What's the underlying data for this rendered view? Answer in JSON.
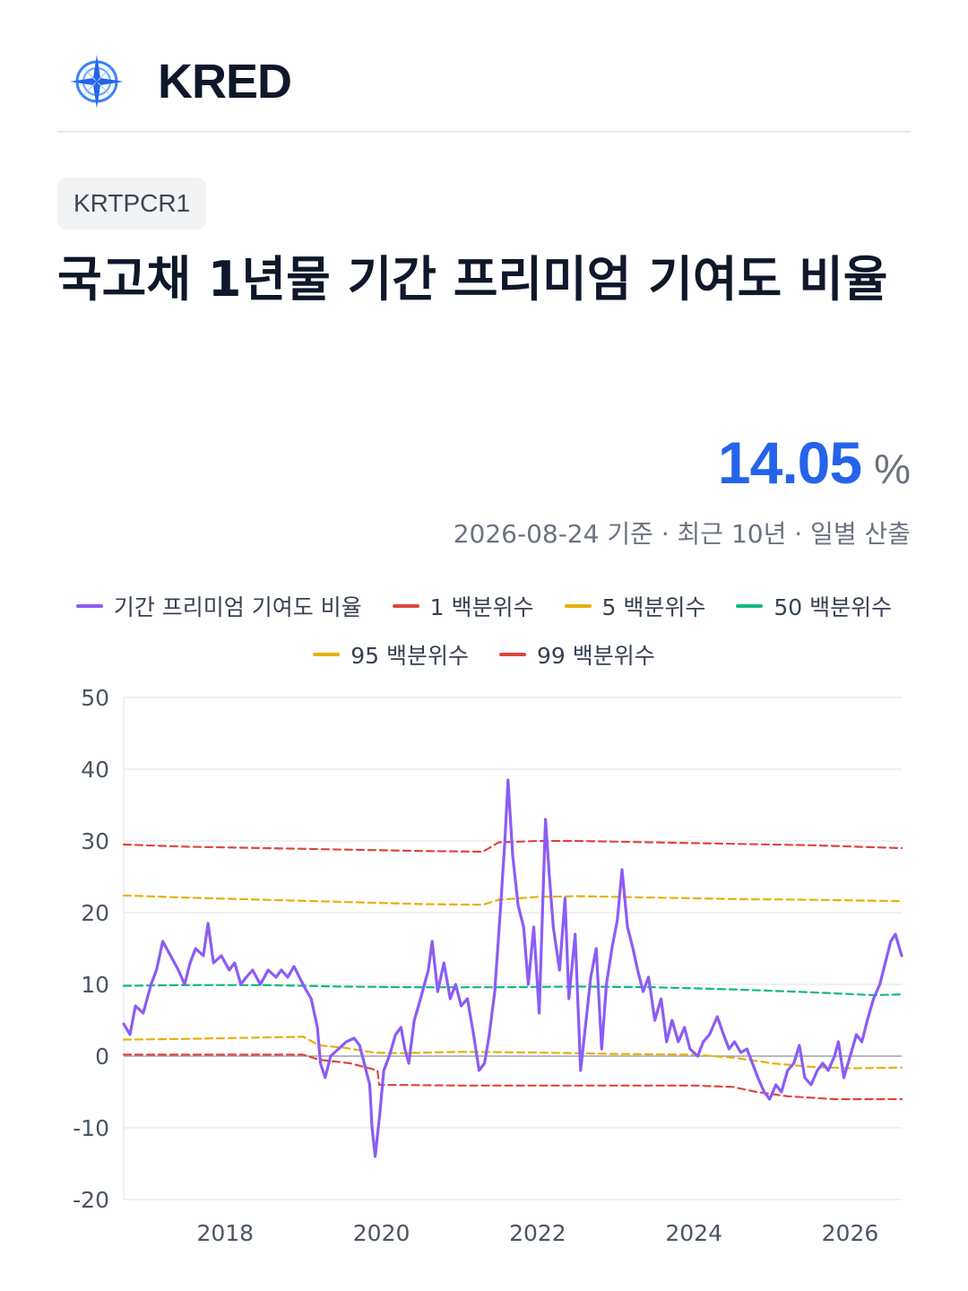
{
  "header": {
    "brand": "KRED",
    "logo_icon": "compass-rose-icon"
  },
  "badge": {
    "code": "KRTPCR1"
  },
  "title": "국고채 1년물 기간 프리미엄 기여도 비율",
  "stat": {
    "value": "14.05",
    "unit": "%",
    "caption": "2026-08-24 기준 · 최근 10년 · 일별 산출"
  },
  "colors": {
    "accent": "#2563eb",
    "series": "#8b5cf6",
    "p1": "#e0453f",
    "p5": "#e6b00d",
    "p50": "#10b981",
    "p95": "#e6b00d",
    "p99": "#e0453f"
  },
  "chart_data": {
    "type": "line",
    "x_axis": {
      "range": [
        2016.7,
        2026.66
      ],
      "ticks": [
        "2018",
        "2020",
        "2022",
        "2024",
        "2026"
      ]
    },
    "y_axis": {
      "range": [
        -20,
        50
      ],
      "ticks": [
        "50",
        "40",
        "30",
        "20",
        "10",
        "0",
        "-10",
        "-20"
      ]
    },
    "grid": true,
    "legend_position": "top",
    "series": [
      {
        "name": "기간 프리미엄 기여도 비율",
        "style": "solid",
        "points": [
          [
            2016.7,
            4.5
          ],
          [
            2016.78,
            3
          ],
          [
            2016.85,
            7
          ],
          [
            2016.95,
            6
          ],
          [
            2017.05,
            10
          ],
          [
            2017.12,
            12
          ],
          [
            2017.2,
            16
          ],
          [
            2017.3,
            14
          ],
          [
            2017.4,
            12
          ],
          [
            2017.48,
            10
          ],
          [
            2017.55,
            13
          ],
          [
            2017.62,
            15
          ],
          [
            2017.72,
            14
          ],
          [
            2017.78,
            18.5
          ],
          [
            2017.85,
            13
          ],
          [
            2017.95,
            14
          ],
          [
            2018.05,
            12
          ],
          [
            2018.12,
            13
          ],
          [
            2018.2,
            10
          ],
          [
            2018.27,
            11
          ],
          [
            2018.35,
            12
          ],
          [
            2018.45,
            10
          ],
          [
            2018.55,
            12
          ],
          [
            2018.65,
            11
          ],
          [
            2018.72,
            12
          ],
          [
            2018.8,
            11
          ],
          [
            2018.88,
            12.5
          ],
          [
            2018.95,
            11
          ],
          [
            2019.02,
            9.5
          ],
          [
            2019.1,
            8
          ],
          [
            2019.18,
            4
          ],
          [
            2019.22,
            -1
          ],
          [
            2019.28,
            -3
          ],
          [
            2019.35,
            0
          ],
          [
            2019.45,
            1
          ],
          [
            2019.55,
            2
          ],
          [
            2019.65,
            2.5
          ],
          [
            2019.72,
            1.5
          ],
          [
            2019.78,
            -1
          ],
          [
            2019.85,
            -4
          ],
          [
            2019.88,
            -10
          ],
          [
            2019.92,
            -14
          ],
          [
            2019.98,
            -8
          ],
          [
            2020.03,
            -2
          ],
          [
            2020.1,
            0
          ],
          [
            2020.18,
            3
          ],
          [
            2020.25,
            4
          ],
          [
            2020.3,
            1
          ],
          [
            2020.35,
            -1
          ],
          [
            2020.42,
            5
          ],
          [
            2020.5,
            8
          ],
          [
            2020.6,
            12
          ],
          [
            2020.65,
            16
          ],
          [
            2020.72,
            9
          ],
          [
            2020.8,
            13
          ],
          [
            2020.88,
            8
          ],
          [
            2020.95,
            10
          ],
          [
            2021.02,
            7
          ],
          [
            2021.1,
            8
          ],
          [
            2021.18,
            3
          ],
          [
            2021.25,
            -2
          ],
          [
            2021.32,
            -1
          ],
          [
            2021.38,
            3
          ],
          [
            2021.45,
            9
          ],
          [
            2021.52,
            20
          ],
          [
            2021.58,
            30
          ],
          [
            2021.62,
            38.5
          ],
          [
            2021.68,
            28
          ],
          [
            2021.75,
            21
          ],
          [
            2021.82,
            18
          ],
          [
            2021.88,
            10
          ],
          [
            2021.95,
            18
          ],
          [
            2022.02,
            6
          ],
          [
            2022.1,
            33
          ],
          [
            2022.15,
            25
          ],
          [
            2022.2,
            18
          ],
          [
            2022.28,
            12
          ],
          [
            2022.35,
            22
          ],
          [
            2022.4,
            8
          ],
          [
            2022.48,
            17
          ],
          [
            2022.55,
            -2
          ],
          [
            2022.62,
            5
          ],
          [
            2022.68,
            11
          ],
          [
            2022.75,
            15
          ],
          [
            2022.82,
            1
          ],
          [
            2022.88,
            10
          ],
          [
            2022.95,
            15
          ],
          [
            2023.02,
            19
          ],
          [
            2023.08,
            26
          ],
          [
            2023.15,
            18
          ],
          [
            2023.22,
            15
          ],
          [
            2023.28,
            12
          ],
          [
            2023.35,
            9
          ],
          [
            2023.42,
            11
          ],
          [
            2023.5,
            5
          ],
          [
            2023.58,
            8
          ],
          [
            2023.65,
            2
          ],
          [
            2023.72,
            5
          ],
          [
            2023.8,
            2
          ],
          [
            2023.88,
            4
          ],
          [
            2023.95,
            1
          ],
          [
            2024.05,
            0
          ],
          [
            2024.12,
            2
          ],
          [
            2024.2,
            3
          ],
          [
            2024.3,
            5.5
          ],
          [
            2024.38,
            3
          ],
          [
            2024.45,
            1
          ],
          [
            2024.52,
            2
          ],
          [
            2024.6,
            0.5
          ],
          [
            2024.68,
            1
          ],
          [
            2024.75,
            -1
          ],
          [
            2024.82,
            -3
          ],
          [
            2024.9,
            -5
          ],
          [
            2024.97,
            -6
          ],
          [
            2025.05,
            -4
          ],
          [
            2025.12,
            -5
          ],
          [
            2025.2,
            -2
          ],
          [
            2025.28,
            -1
          ],
          [
            2025.35,
            1.5
          ],
          [
            2025.42,
            -3
          ],
          [
            2025.5,
            -4
          ],
          [
            2025.58,
            -2
          ],
          [
            2025.65,
            -1
          ],
          [
            2025.72,
            -2
          ],
          [
            2025.8,
            0
          ],
          [
            2025.85,
            2
          ],
          [
            2025.92,
            -3
          ],
          [
            2026.0,
            0
          ],
          [
            2026.08,
            3
          ],
          [
            2026.15,
            2
          ],
          [
            2026.22,
            5
          ],
          [
            2026.3,
            8
          ],
          [
            2026.38,
            10
          ],
          [
            2026.45,
            13
          ],
          [
            2026.52,
            16
          ],
          [
            2026.58,
            17
          ],
          [
            2026.66,
            14
          ]
        ]
      },
      {
        "name": "1 백분위수",
        "style": "dashed",
        "points": [
          [
            2016.7,
            0.2
          ],
          [
            2019.0,
            0.2
          ],
          [
            2019.2,
            -0.5
          ],
          [
            2019.6,
            -1
          ],
          [
            2019.95,
            -2
          ],
          [
            2019.97,
            -4
          ],
          [
            2021.0,
            -4.1
          ],
          [
            2022.0,
            -4.1
          ],
          [
            2023.0,
            -4.1
          ],
          [
            2024.0,
            -4.1
          ],
          [
            2024.5,
            -4.3
          ],
          [
            2024.8,
            -5
          ],
          [
            2025.2,
            -5.6
          ],
          [
            2025.8,
            -6
          ],
          [
            2026.66,
            -6
          ]
        ]
      },
      {
        "name": "5 백분위수",
        "style": "dashed",
        "points": [
          [
            2016.7,
            2.3
          ],
          [
            2017.5,
            2.4
          ],
          [
            2018.5,
            2.6
          ],
          [
            2019.0,
            2.7
          ],
          [
            2019.2,
            1.5
          ],
          [
            2019.5,
            1.2
          ],
          [
            2019.9,
            0.5
          ],
          [
            2020.2,
            0.4
          ],
          [
            2021.0,
            0.6
          ],
          [
            2022.0,
            0.5
          ],
          [
            2023.0,
            0.3
          ],
          [
            2024.0,
            0.2
          ],
          [
            2024.5,
            -0.2
          ],
          [
            2025.0,
            -1
          ],
          [
            2025.5,
            -1.5
          ],
          [
            2026.0,
            -1.7
          ],
          [
            2026.66,
            -1.6
          ]
        ]
      },
      {
        "name": "50 백분위수",
        "style": "dashed",
        "points": [
          [
            2016.7,
            9.8
          ],
          [
            2017.5,
            9.9
          ],
          [
            2018.5,
            9.9
          ],
          [
            2019.5,
            9.7
          ],
          [
            2020.5,
            9.6
          ],
          [
            2021.5,
            9.6
          ],
          [
            2022.5,
            9.7
          ],
          [
            2023.5,
            9.6
          ],
          [
            2024.5,
            9.3
          ],
          [
            2025.5,
            8.9
          ],
          [
            2026.3,
            8.5
          ],
          [
            2026.66,
            8.6
          ]
        ]
      },
      {
        "name": "95 백분위수",
        "style": "dashed",
        "points": [
          [
            2016.7,
            22.4
          ],
          [
            2017.5,
            22.1
          ],
          [
            2018.5,
            21.8
          ],
          [
            2019.5,
            21.5
          ],
          [
            2020.5,
            21.2
          ],
          [
            2021.3,
            21.1
          ],
          [
            2021.5,
            21.8
          ],
          [
            2022.0,
            22.2
          ],
          [
            2022.5,
            22.3
          ],
          [
            2023.5,
            22.1
          ],
          [
            2024.5,
            21.9
          ],
          [
            2025.5,
            21.8
          ],
          [
            2026.66,
            21.6
          ]
        ]
      },
      {
        "name": "99 백분위수",
        "style": "dashed",
        "points": [
          [
            2016.7,
            29.5
          ],
          [
            2017.5,
            29.2
          ],
          [
            2018.5,
            29
          ],
          [
            2019.5,
            28.8
          ],
          [
            2020.5,
            28.6
          ],
          [
            2021.3,
            28.5
          ],
          [
            2021.5,
            29.8
          ],
          [
            2022.0,
            30
          ],
          [
            2022.5,
            30
          ],
          [
            2023.5,
            29.8
          ],
          [
            2024.5,
            29.6
          ],
          [
            2025.5,
            29.4
          ],
          [
            2026.66,
            29
          ]
        ]
      }
    ]
  }
}
